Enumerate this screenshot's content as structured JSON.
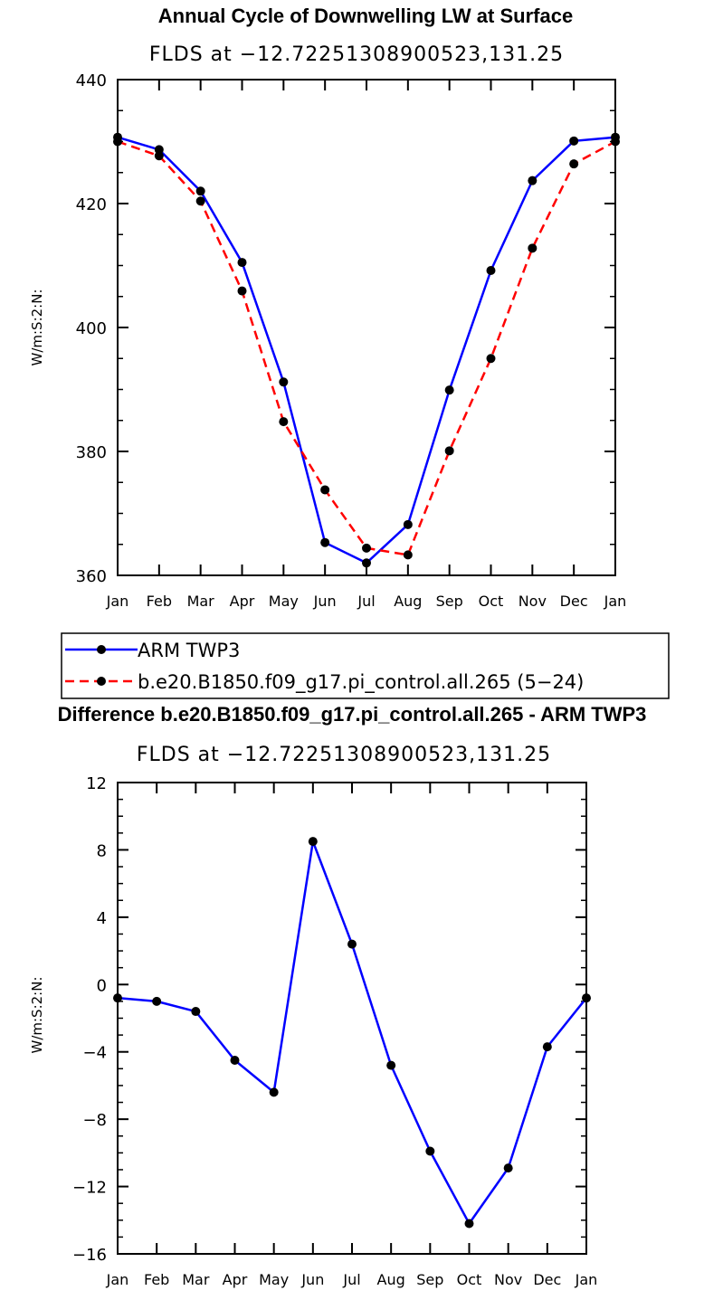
{
  "chart_data": [
    {
      "type": "line",
      "title": "Annual Cycle of Downwelling LW at Surface",
      "subtitle": "FLDS at −12.72251308900523,131.25",
      "ylabel": "W/m:S:2:N:",
      "ylim": [
        360,
        440
      ],
      "yticks": [
        "360",
        "380",
        "400",
        "420",
        "440"
      ],
      "categories": [
        "Jan",
        "Feb",
        "Mar",
        "Apr",
        "May",
        "Jun",
        "Jul",
        "Aug",
        "Sep",
        "Oct",
        "Nov",
        "Dec",
        "Jan"
      ],
      "series": [
        {
          "name": "ARM TWP3",
          "color": "#0000ff",
          "dashed": false,
          "values": [
            430.7,
            428.7,
            422.0,
            410.5,
            391.2,
            365.3,
            362.0,
            368.2,
            389.9,
            409.2,
            423.7,
            430.1,
            430.7
          ]
        },
        {
          "name": "b.e20.B1850.f09_g17.pi_control.all.265 (5−24)",
          "color": "#ff0000",
          "dashed": true,
          "values": [
            430.0,
            427.7,
            420.4,
            405.9,
            384.8,
            373.8,
            364.4,
            363.3,
            380.1,
            395.0,
            412.8,
            426.4,
            430.0
          ]
        }
      ],
      "legend": "bottom"
    },
    {
      "type": "line",
      "title": "Difference b.e20.B1850.f09_g17.pi_control.all.265 - ARM TWP3",
      "subtitle": "FLDS at −12.72251308900523,131.25",
      "ylabel": "W/m:S:2:N:",
      "ylim": [
        -16,
        12
      ],
      "yticks": [
        "−16",
        "−12",
        "−8",
        "−4",
        "0",
        "4",
        "8",
        "12"
      ],
      "categories": [
        "Jan",
        "Feb",
        "Mar",
        "Apr",
        "May",
        "Jun",
        "Jul",
        "Aug",
        "Sep",
        "Oct",
        "Nov",
        "Dec",
        "Jan"
      ],
      "series": [
        {
          "color": "#0000ff",
          "dashed": false,
          "values": [
            -0.8,
            -1.0,
            -1.6,
            -4.5,
            -6.4,
            8.5,
            2.4,
            -4.8,
            -9.9,
            -14.2,
            -10.9,
            -3.7,
            -0.8
          ]
        }
      ]
    }
  ]
}
